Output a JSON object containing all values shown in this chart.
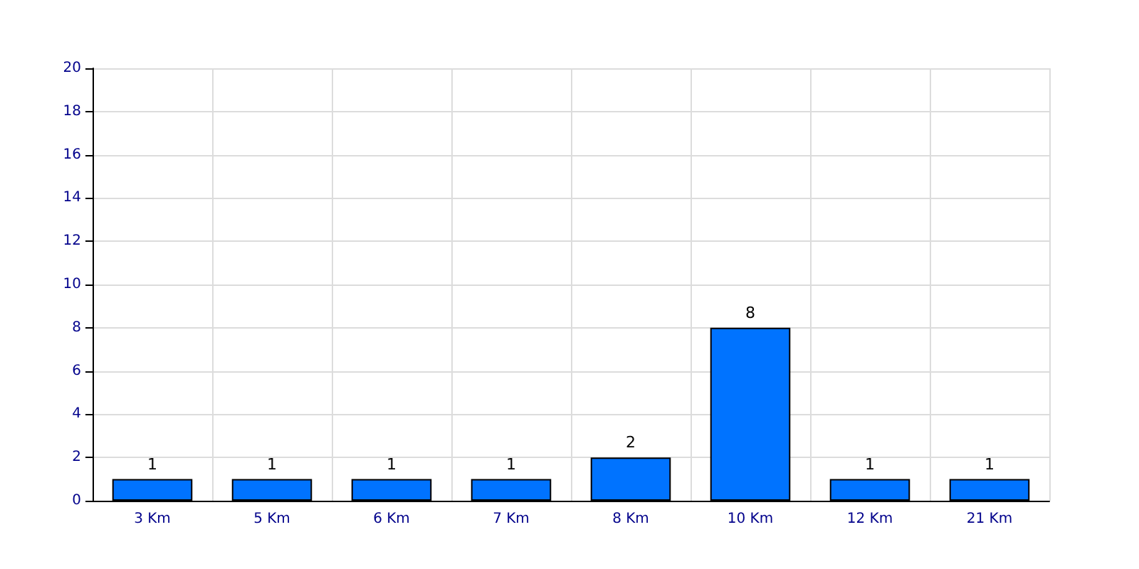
{
  "chart_data": {
    "type": "bar",
    "categories": [
      "3 Km",
      "5 Km",
      "6 Km",
      "7 Km",
      "8 Km",
      "10 Km",
      "12 Km",
      "21 Km"
    ],
    "values": [
      1,
      1,
      1,
      1,
      2,
      8,
      1,
      1
    ],
    "color": "#0073ff",
    "ylim": [
      0,
      20
    ],
    "yticks": [
      0,
      2,
      4,
      6,
      8,
      10,
      12,
      14,
      16,
      18,
      20
    ],
    "grid": true,
    "data_labels": true
  }
}
